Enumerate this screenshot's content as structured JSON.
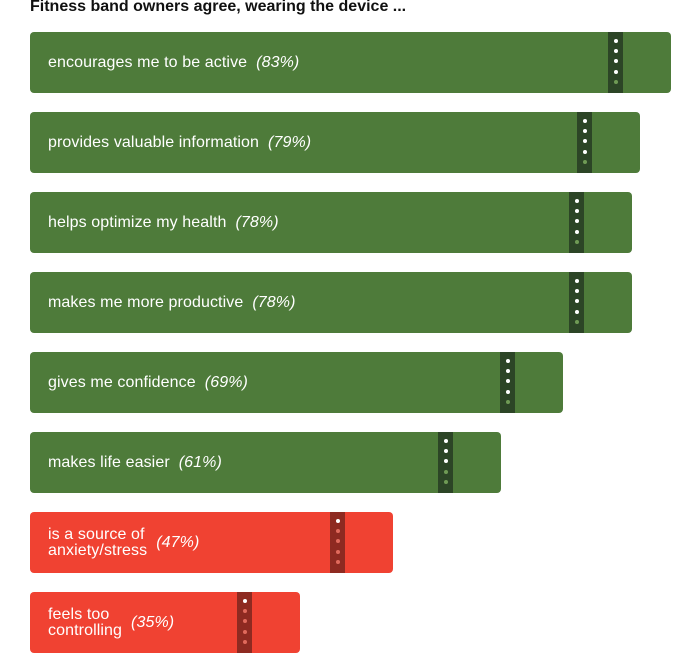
{
  "title": "Fitness band owners agree, wearing the device ...",
  "colors": {
    "positive": "#4e7b3a",
    "positive_strap": "#2c4526",
    "positive_hole": "#6f9a55",
    "negative": "#f04232",
    "negative_strap": "#8e2a21",
    "negative_hole": "#e06a5c",
    "hole_bright": "#ffffff"
  },
  "chart_data": {
    "type": "bar",
    "orientation": "horizontal",
    "title": "Fitness band owners agree, wearing the device ...",
    "xlim": [
      0,
      100
    ],
    "grid": false,
    "unit": "%",
    "categories": [
      "encourages me to be active",
      "provides valuable information",
      "helps optimize my health",
      "makes me more productive",
      "gives me confidence",
      "makes life easier",
      "is a source of\nanxiety/stress",
      "feels too\ncontrolling"
    ],
    "values": [
      83,
      79,
      78,
      78,
      69,
      61,
      47,
      35
    ],
    "value_labels": [
      "(83%)",
      "(79%)",
      "(78%)",
      "(78%)",
      "(69%)",
      "(61%)",
      "(47%)",
      "(35%)"
    ],
    "sentiment": [
      "positive",
      "positive",
      "positive",
      "positive",
      "positive",
      "positive",
      "negative",
      "negative"
    ]
  }
}
